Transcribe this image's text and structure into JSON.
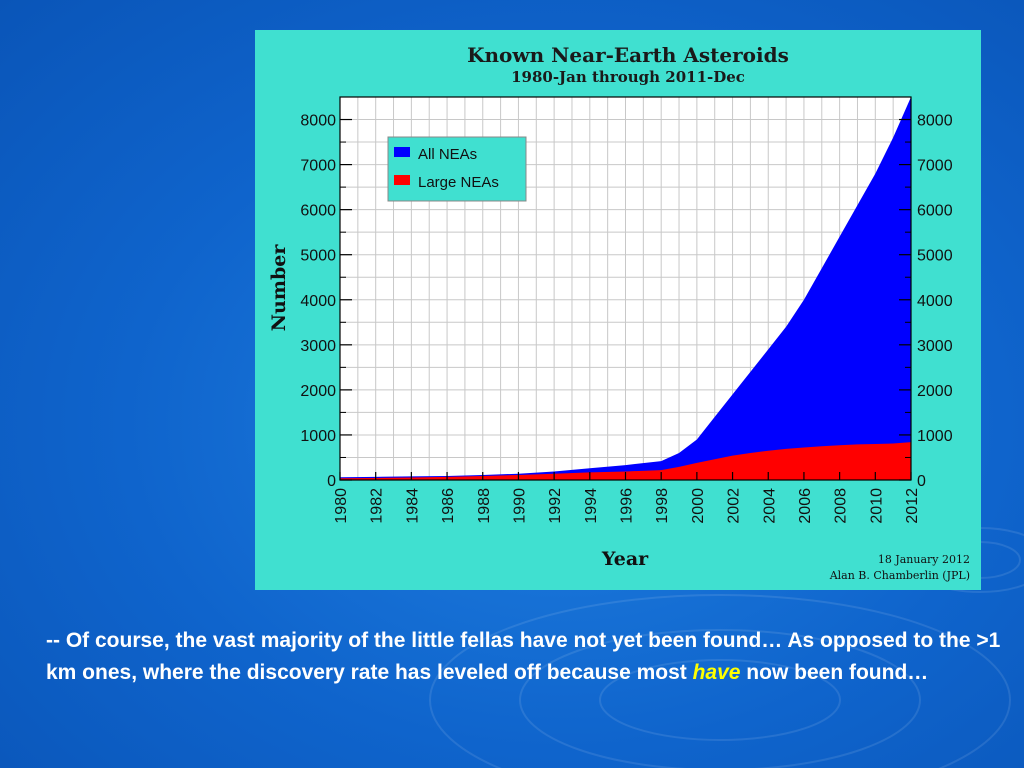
{
  "chart_data": {
    "type": "area",
    "title": "Known Near-Earth Asteroids",
    "subtitle": "1980-Jan through 2011-Dec",
    "xlabel": "Year",
    "ylabel": "Number",
    "xlim": [
      1980,
      2012
    ],
    "ylim": [
      0,
      8500
    ],
    "x_ticks": [
      1980,
      1982,
      1984,
      1986,
      1988,
      1990,
      1992,
      1994,
      1996,
      1998,
      2000,
      2002,
      2004,
      2006,
      2008,
      2010,
      2012
    ],
    "y_ticks": [
      0,
      1000,
      2000,
      3000,
      4000,
      5000,
      6000,
      7000,
      8000
    ],
    "grid": true,
    "legend_position": "top-left",
    "x": [
      1980,
      1982,
      1984,
      1986,
      1988,
      1990,
      1992,
      1994,
      1996,
      1998,
      1999,
      2000,
      2001,
      2002,
      2003,
      2004,
      2005,
      2006,
      2007,
      2008,
      2009,
      2010,
      2011,
      2012
    ],
    "series": [
      {
        "name": "All NEAs",
        "color": "#0000ff",
        "values": [
          60,
          70,
          80,
          90,
          110,
          140,
          190,
          260,
          330,
          420,
          600,
          900,
          1400,
          1900,
          2400,
          2900,
          3400,
          4000,
          4700,
          5400,
          6100,
          6800,
          7600,
          8500
        ]
      },
      {
        "name": "Large NEAs",
        "color": "#ff0000",
        "values": [
          40,
          45,
          55,
          70,
          90,
          110,
          140,
          170,
          190,
          220,
          290,
          380,
          460,
          540,
          600,
          650,
          690,
          720,
          750,
          770,
          790,
          800,
          810,
          840
        ]
      }
    ],
    "credit_date": "18 January 2012",
    "credit_author": "Alan B. Chamberlin (JPL)"
  },
  "caption": {
    "part1": "-- Of course, the vast majority of the little fellas have not yet been found… As opposed to the  >1 km ones, where the discovery rate has leveled off because most ",
    "highlight": "have",
    "part2": " now been found…"
  }
}
